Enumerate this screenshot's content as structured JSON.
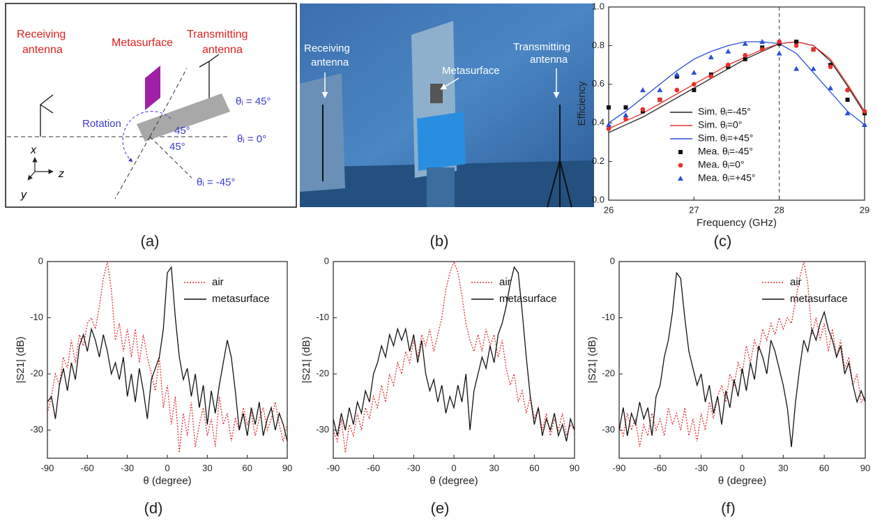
{
  "diagram": {
    "receiving": [
      "Receiving",
      "antenna"
    ],
    "metasurface": "Metasurface",
    "transmitting": [
      "Transmitting",
      "antenna"
    ],
    "rotation": "Rotation",
    "angle_upper": "45°",
    "angle_lower": "45°",
    "theta_pos": "θᵢ = 45°",
    "theta_zero": "θᵢ = 0°",
    "theta_neg": "θᵢ = -45°",
    "axis_x": "x",
    "axis_y": "y",
    "axis_z": "z",
    "caption": "(a)"
  },
  "photo": {
    "receiving": [
      "Receiving",
      "antenna"
    ],
    "metasurface": "Metasurface",
    "transmitting": [
      "Transmitting",
      "antenna"
    ],
    "caption": "(b)"
  },
  "chart_data": [
    {
      "type": "line",
      "caption": "(c)",
      "xlabel": "Frequency (GHz)",
      "ylabel": "Efficiency",
      "x": [
        26,
        26.2,
        26.4,
        26.6,
        26.8,
        27,
        27.2,
        27.4,
        27.6,
        27.8,
        28,
        28.2,
        28.4,
        28.6,
        28.8,
        29
      ],
      "xlim": [
        26,
        29
      ],
      "xticks": [
        26,
        27,
        28,
        29
      ],
      "ylim": [
        0,
        1
      ],
      "yticks": [
        {
          "value": 0,
          "label": "0.0"
        },
        0.2,
        0.4,
        0.6,
        0.8,
        {
          "value": 1,
          "label": "1.0"
        }
      ],
      "vline": 28,
      "legend": "lower center",
      "series": [
        {
          "name": "Sim.  θᵢ=-45°",
          "color": "#222222",
          "values": [
            0.35,
            0.39,
            0.43,
            0.48,
            0.53,
            0.58,
            0.63,
            0.68,
            0.73,
            0.77,
            0.81,
            0.82,
            0.8,
            0.72,
            0.59,
            0.45
          ]
        },
        {
          "name": "Sim.  θᵢ=0°",
          "color": "#e8302a",
          "values": [
            0.37,
            0.41,
            0.45,
            0.5,
            0.55,
            0.6,
            0.65,
            0.7,
            0.74,
            0.78,
            0.81,
            0.82,
            0.8,
            0.73,
            0.6,
            0.46
          ]
        },
        {
          "name": "Sim.  θᵢ=+45°",
          "color": "#2a4fd8",
          "values": [
            0.4,
            0.46,
            0.53,
            0.6,
            0.67,
            0.73,
            0.77,
            0.8,
            0.82,
            0.82,
            0.81,
            0.76,
            0.66,
            0.56,
            0.46,
            0.39
          ]
        },
        {
          "name": "Mea.  θᵢ=-45°",
          "color": "#111111",
          "marker": "square",
          "values": [
            0.48,
            0.48,
            0.46,
            0.52,
            0.64,
            0.57,
            0.65,
            0.69,
            0.73,
            0.79,
            0.81,
            0.82,
            0.78,
            0.7,
            0.52,
            0.45
          ]
        },
        {
          "name": "Mea.  θᵢ=0°",
          "color": "#e8302a",
          "marker": "circle",
          "values": [
            0.37,
            0.42,
            0.47,
            0.52,
            0.57,
            0.6,
            0.64,
            0.7,
            0.75,
            0.78,
            0.82,
            0.8,
            0.78,
            0.69,
            0.57,
            0.46
          ]
        },
        {
          "name": "Mea.  θᵢ=+45°",
          "color": "#2a4fd8",
          "marker": "triangle",
          "values": [
            0.39,
            0.44,
            0.57,
            0.57,
            0.65,
            0.66,
            0.74,
            0.77,
            0.81,
            0.82,
            0.76,
            0.68,
            0.68,
            0.58,
            0.45,
            0.39
          ]
        }
      ]
    },
    {
      "type": "line",
      "caption": "(d)",
      "xlabel": "θ (degree)",
      "ylabel": "|S21| (dB)",
      "x": [
        -90,
        -87,
        -84,
        -81,
        -78,
        -75,
        -72,
        -69,
        -66,
        -63,
        -60,
        -57,
        -54,
        -51,
        -48,
        -45,
        -42,
        -39,
        -36,
        -33,
        -30,
        -27,
        -24,
        -21,
        -18,
        -15,
        -12,
        -9,
        -6,
        -3,
        0,
        3,
        6,
        9,
        12,
        15,
        18,
        21,
        24,
        27,
        30,
        33,
        36,
        39,
        42,
        45,
        48,
        51,
        54,
        57,
        60,
        63,
        66,
        69,
        72,
        75,
        78,
        81,
        84,
        87,
        90
      ],
      "xlim": [
        -90,
        90
      ],
      "xticks": [
        -90,
        -60,
        -30,
        0,
        30,
        60,
        90
      ],
      "ylim": [
        -35,
        0
      ],
      "yticks": [
        -30,
        -20,
        -10,
        0
      ],
      "legend": "upper right",
      "series": [
        {
          "name": "air",
          "color": "#e03030",
          "linestyle": "dotted",
          "values": [
            -27,
            -24,
            -20,
            -22,
            -17,
            -19,
            -14,
            -18,
            -13,
            -15,
            -11,
            -10,
            -12,
            -8,
            -3,
            0,
            -5,
            -14,
            -11,
            -16,
            -12,
            -17,
            -12,
            -18,
            -13,
            -17,
            -20,
            -23,
            -17,
            -26,
            -22,
            -29,
            -24,
            -34,
            -27,
            -31,
            -25,
            -33,
            -29,
            -26,
            -31,
            -28,
            -33,
            -24,
            -29,
            -27,
            -32,
            -28,
            -30,
            -26,
            -29,
            -27,
            -31,
            -28,
            -26,
            -30,
            -28,
            -25,
            -29,
            -32,
            -29
          ]
        },
        {
          "name": "metasurface",
          "color": "#111111",
          "linestyle": "solid",
          "values": [
            -25,
            -24,
            -28,
            -22,
            -19,
            -23,
            -18,
            -21,
            -15,
            -13,
            -16,
            -12,
            -14,
            -17,
            -13,
            -16,
            -20,
            -18,
            -21,
            -17,
            -24,
            -20,
            -25,
            -19,
            -23,
            -28,
            -21,
            -19,
            -17,
            -12,
            -2,
            -1,
            -10,
            -17,
            -21,
            -19,
            -24,
            -20,
            -26,
            -22,
            -29,
            -23,
            -27,
            -22,
            -18,
            -14,
            -17,
            -23,
            -30,
            -27,
            -31,
            -26,
            -29,
            -25,
            -31,
            -28,
            -26,
            -30,
            -27,
            -29,
            -32
          ]
        }
      ]
    },
    {
      "type": "line",
      "caption": "(e)",
      "xlabel": "θ (degree)",
      "ylabel": "|S21| (dB)",
      "x": [
        -90,
        -87,
        -84,
        -81,
        -78,
        -75,
        -72,
        -69,
        -66,
        -63,
        -60,
        -57,
        -54,
        -51,
        -48,
        -45,
        -42,
        -39,
        -36,
        -33,
        -30,
        -27,
        -24,
        -21,
        -18,
        -15,
        -12,
        -9,
        -6,
        -3,
        0,
        3,
        6,
        9,
        12,
        15,
        18,
        21,
        24,
        27,
        30,
        33,
        36,
        39,
        42,
        45,
        48,
        51,
        54,
        57,
        60,
        63,
        66,
        69,
        72,
        75,
        78,
        81,
        84,
        87,
        90
      ],
      "xlim": [
        -90,
        90
      ],
      "xticks": [
        -90,
        -60,
        -30,
        0,
        30,
        60,
        90
      ],
      "ylim": [
        -35,
        0
      ],
      "yticks": [
        -30,
        -20,
        -10,
        0
      ],
      "legend": "upper right",
      "series": [
        {
          "name": "air",
          "color": "#e03030",
          "linestyle": "dotted",
          "values": [
            -30,
            -32,
            -28,
            -34,
            -29,
            -31,
            -27,
            -30,
            -26,
            -28,
            -24,
            -26,
            -22,
            -25,
            -20,
            -22,
            -18,
            -20,
            -16,
            -18,
            -14,
            -17,
            -13,
            -15,
            -12,
            -16,
            -13,
            -10,
            -5,
            -2,
            0,
            -2,
            -6,
            -11,
            -14,
            -16,
            -13,
            -16,
            -12,
            -15,
            -13,
            -17,
            -14,
            -19,
            -22,
            -20,
            -25,
            -23,
            -27,
            -24,
            -28,
            -26,
            -30,
            -27,
            -31,
            -28,
            -30,
            -27,
            -31,
            -29,
            -30
          ]
        },
        {
          "name": "metasurface",
          "color": "#111111",
          "linestyle": "solid",
          "values": [
            -28,
            -31,
            -27,
            -30,
            -26,
            -29,
            -25,
            -27,
            -23,
            -25,
            -20,
            -18,
            -15,
            -17,
            -13,
            -15,
            -12,
            -14,
            -12,
            -16,
            -13,
            -18,
            -14,
            -20,
            -23,
            -21,
            -25,
            -22,
            -27,
            -24,
            -26,
            -22,
            -25,
            -20,
            -30,
            -23,
            -20,
            -17,
            -19,
            -15,
            -18,
            -13,
            -11,
            -8,
            -4,
            -1,
            -2,
            -9,
            -17,
            -24,
            -29,
            -26,
            -31,
            -28,
            -30,
            -27,
            -31,
            -29,
            -32,
            -28,
            -30
          ]
        }
      ]
    },
    {
      "type": "line",
      "caption": "(f)",
      "xlabel": "θ (degree)",
      "ylabel": "|S21| (dB)",
      "x": [
        -90,
        -87,
        -84,
        -81,
        -78,
        -75,
        -72,
        -69,
        -66,
        -63,
        -60,
        -57,
        -54,
        -51,
        -48,
        -45,
        -42,
        -39,
        -36,
        -33,
        -30,
        -27,
        -24,
        -21,
        -18,
        -15,
        -12,
        -9,
        -6,
        -3,
        0,
        3,
        6,
        9,
        12,
        15,
        18,
        21,
        24,
        27,
        30,
        33,
        36,
        39,
        42,
        45,
        48,
        51,
        54,
        57,
        60,
        63,
        66,
        69,
        72,
        75,
        78,
        81,
        84,
        87,
        90
      ],
      "xlim": [
        -90,
        90
      ],
      "xticks": [
        -90,
        -60,
        -30,
        0,
        30,
        60,
        90
      ],
      "ylim": [
        -35,
        0
      ],
      "yticks": [
        -30,
        -20,
        -10,
        0
      ],
      "legend": "upper right",
      "series": [
        {
          "name": "air",
          "color": "#e03030",
          "linestyle": "dotted",
          "values": [
            -29,
            -31,
            -27,
            -30,
            -28,
            -33,
            -29,
            -31,
            -27,
            -30,
            -28,
            -31,
            -26,
            -29,
            -27,
            -30,
            -26,
            -31,
            -28,
            -32,
            -27,
            -30,
            -25,
            -28,
            -24,
            -22,
            -25,
            -20,
            -22,
            -18,
            -20,
            -15,
            -18,
            -14,
            -16,
            -12,
            -14,
            -11,
            -13,
            -10,
            -12,
            -10,
            -11,
            -7,
            -3,
            0,
            -4,
            -13,
            -10,
            -14,
            -11,
            -16,
            -12,
            -17,
            -14,
            -19,
            -17,
            -22,
            -20,
            -25,
            -24
          ]
        },
        {
          "name": "metasurface",
          "color": "#111111",
          "linestyle": "solid",
          "values": [
            -30,
            -26,
            -31,
            -27,
            -29,
            -25,
            -28,
            -26,
            -31,
            -24,
            -22,
            -17,
            -14,
            -9,
            -2,
            -3,
            -10,
            -16,
            -19,
            -22,
            -20,
            -25,
            -22,
            -27,
            -24,
            -29,
            -23,
            -26,
            -21,
            -24,
            -19,
            -23,
            -18,
            -21,
            -15,
            -17,
            -20,
            -14,
            -16,
            -19,
            -22,
            -26,
            -33,
            -25,
            -19,
            -14,
            -16,
            -12,
            -14,
            -11,
            -9,
            -12,
            -14,
            -17,
            -15,
            -20,
            -18,
            -22,
            -25,
            -23,
            -25
          ]
        }
      ]
    }
  ]
}
